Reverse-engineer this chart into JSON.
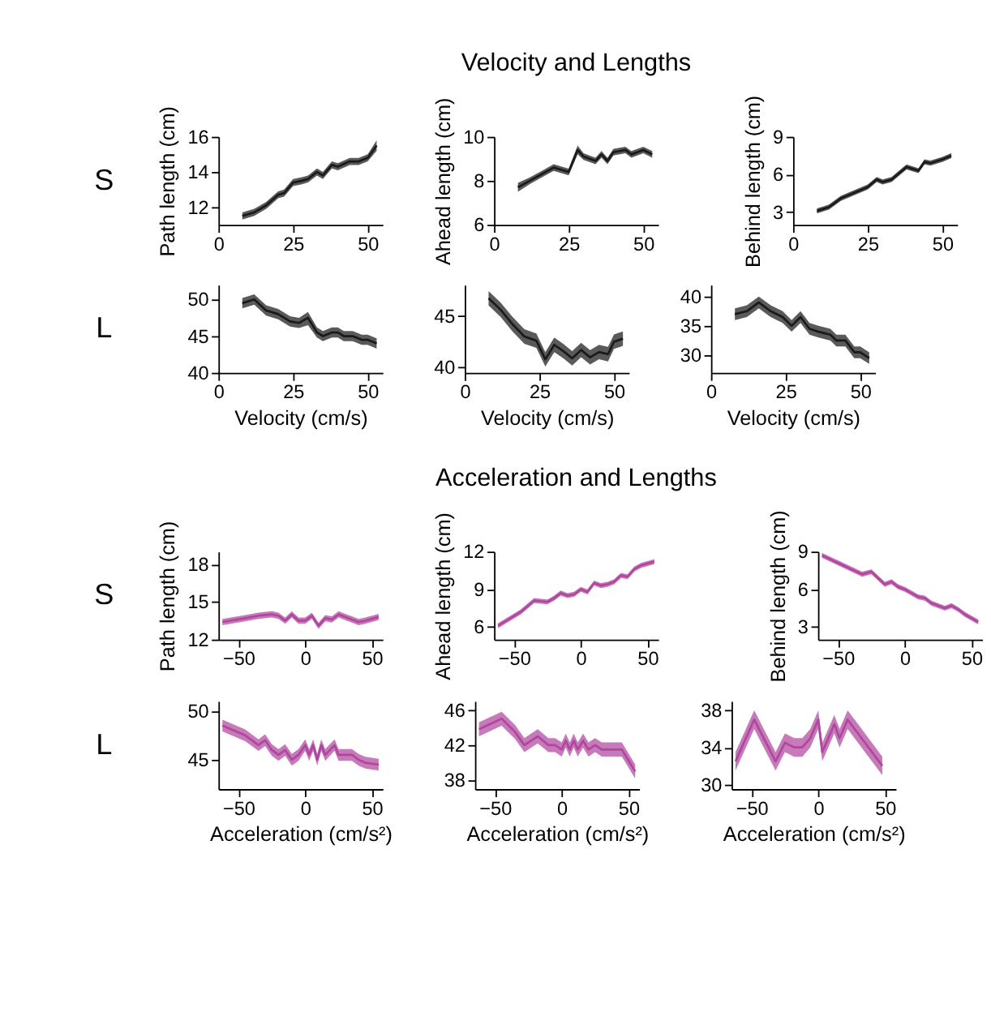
{
  "chart_data": [
    {
      "type": "line",
      "annotations": [
        "S"
      ],
      "ylabel": "Path length (cm)",
      "xlim": [
        0,
        55
      ],
      "xticks": [
        0,
        25,
        50
      ],
      "ylim": [
        11,
        16
      ],
      "yticks": [
        12,
        14,
        16
      ],
      "grid": false,
      "series": [
        {
          "color": "#1a1a1a",
          "x": [
            8,
            12,
            16,
            20,
            22,
            25,
            28,
            30,
            33,
            35,
            38,
            40,
            44,
            47,
            50,
            53
          ],
          "values": [
            11.5,
            11.7,
            12.1,
            12.7,
            12.8,
            13.4,
            13.5,
            13.6,
            14.0,
            13.8,
            14.4,
            14.3,
            14.6,
            14.6,
            14.8,
            15.5
          ],
          "lower": [
            11.3,
            11.5,
            11.9,
            12.5,
            12.6,
            13.2,
            13.3,
            13.4,
            13.8,
            13.6,
            14.2,
            14.1,
            14.4,
            14.4,
            14.6,
            15.2
          ],
          "upper": [
            11.7,
            11.9,
            12.3,
            12.9,
            13.0,
            13.6,
            13.7,
            13.8,
            14.2,
            14.0,
            14.6,
            14.5,
            14.8,
            14.8,
            15.0,
            15.8
          ]
        }
      ]
    },
    {
      "type": "line",
      "title": "Velocity and Lengths",
      "ylabel": "Ahead length (cm)",
      "xlim": [
        0,
        55
      ],
      "xticks": [
        0,
        25,
        50
      ],
      "ylim": [
        6,
        10
      ],
      "yticks": [
        6,
        8,
        10
      ],
      "grid": false,
      "series": [
        {
          "color": "#1a1a1a",
          "x": [
            8,
            12,
            16,
            20,
            25,
            28,
            30,
            34,
            36,
            38,
            40,
            44,
            46,
            50,
            53
          ],
          "values": [
            7.7,
            8.0,
            8.3,
            8.6,
            8.4,
            9.4,
            9.1,
            8.9,
            9.2,
            8.9,
            9.3,
            9.4,
            9.2,
            9.4,
            9.2
          ],
          "lower": [
            7.5,
            7.85,
            8.15,
            8.45,
            8.25,
            9.2,
            8.95,
            8.75,
            9.05,
            8.75,
            9.15,
            9.25,
            9.05,
            9.25,
            9.05
          ],
          "upper": [
            7.9,
            8.15,
            8.45,
            8.75,
            8.55,
            9.6,
            9.25,
            9.05,
            9.35,
            9.05,
            9.45,
            9.55,
            9.35,
            9.55,
            9.35
          ]
        }
      ]
    },
    {
      "type": "line",
      "ylabel": "Behind length (cm)",
      "xlim": [
        0,
        55
      ],
      "xticks": [
        0,
        25,
        50
      ],
      "ylim": [
        2,
        9
      ],
      "yticks": [
        3,
        6,
        9
      ],
      "grid": false,
      "series": [
        {
          "color": "#1a1a1a",
          "x": [
            8,
            12,
            16,
            20,
            25,
            28,
            30,
            33,
            35,
            38,
            42,
            44,
            46,
            50,
            53
          ],
          "values": [
            3.1,
            3.4,
            4.1,
            4.5,
            5.0,
            5.6,
            5.4,
            5.6,
            6.0,
            6.6,
            6.3,
            7.0,
            6.9,
            7.2,
            7.5
          ],
          "lower": [
            2.9,
            3.2,
            3.9,
            4.3,
            4.8,
            5.4,
            5.2,
            5.4,
            5.8,
            6.4,
            6.1,
            6.8,
            6.7,
            7.0,
            7.3
          ],
          "upper": [
            3.3,
            3.6,
            4.3,
            4.7,
            5.2,
            5.8,
            5.6,
            5.8,
            6.2,
            6.8,
            6.5,
            7.2,
            7.1,
            7.4,
            7.7
          ]
        }
      ]
    },
    {
      "type": "line",
      "annotations": [
        "L"
      ],
      "xlabel": "Velocity (cm/s)",
      "xlim": [
        0,
        55
      ],
      "xticks": [
        0,
        25,
        50
      ],
      "ylim": [
        40,
        52
      ],
      "yticks": [
        40,
        45,
        50
      ],
      "grid": false,
      "series": [
        {
          "color": "#1a1a1a",
          "x": [
            8,
            12,
            16,
            20,
            24,
            27,
            30,
            33,
            35,
            38,
            40,
            42,
            45,
            48,
            50,
            53
          ],
          "values": [
            49.5,
            50.0,
            48.5,
            48.0,
            47.0,
            46.8,
            47.5,
            45.5,
            45.0,
            45.5,
            45.5,
            45.0,
            45.0,
            44.5,
            44.5,
            44.0
          ],
          "lower": [
            48.8,
            49.3,
            47.8,
            47.3,
            46.3,
            46.1,
            46.5,
            44.8,
            44.3,
            44.8,
            44.8,
            44.3,
            44.3,
            43.8,
            43.8,
            43.3
          ],
          "upper": [
            50.2,
            50.7,
            49.2,
            48.7,
            47.7,
            47.5,
            48.3,
            46.2,
            45.7,
            46.2,
            46.2,
            45.7,
            45.7,
            45.2,
            45.2,
            44.7
          ]
        }
      ]
    },
    {
      "type": "line",
      "xlabel": "Velocity (cm/s)",
      "xlim": [
        0,
        55
      ],
      "xticks": [
        0,
        25,
        50
      ],
      "ylim": [
        39.5,
        48
      ],
      "yticks": [
        40,
        45
      ],
      "grid": false,
      "series": [
        {
          "color": "#1a1a1a",
          "x": [
            8,
            12,
            16,
            20,
            24,
            27,
            30,
            33,
            36,
            39,
            42,
            45,
            48,
            50,
            53
          ],
          "values": [
            46.7,
            45.6,
            44.2,
            43.0,
            42.6,
            40.8,
            42.2,
            41.6,
            40.9,
            41.7,
            41.0,
            41.5,
            41.3,
            42.5,
            42.8
          ],
          "lower": [
            46.0,
            44.9,
            43.5,
            42.3,
            41.9,
            40.1,
            41.5,
            40.9,
            40.2,
            41.0,
            40.3,
            40.8,
            40.6,
            41.8,
            42.1
          ],
          "upper": [
            47.4,
            46.3,
            44.9,
            43.7,
            43.3,
            41.5,
            42.9,
            42.3,
            41.6,
            42.4,
            41.7,
            42.2,
            42.0,
            43.2,
            43.5
          ]
        }
      ]
    },
    {
      "type": "line",
      "xlabel": "Velocity (cm/s)",
      "xlim": [
        0,
        55
      ],
      "xticks": [
        0,
        25,
        50
      ],
      "ylim": [
        27,
        42
      ],
      "yticks": [
        30,
        35,
        40
      ],
      "grid": false,
      "series": [
        {
          "color": "#1a1a1a",
          "x": [
            8,
            12,
            16,
            20,
            24,
            27,
            30,
            33,
            36,
            40,
            42,
            45,
            48,
            50,
            53
          ],
          "values": [
            37.0,
            37.5,
            39.0,
            37.5,
            36.5,
            35.0,
            36.5,
            34.5,
            34.0,
            33.5,
            32.5,
            32.5,
            30.5,
            30.5,
            29.5
          ],
          "lower": [
            36.0,
            36.5,
            38.0,
            36.5,
            35.5,
            34.0,
            35.5,
            33.5,
            33.0,
            32.5,
            31.5,
            31.5,
            29.5,
            29.5,
            28.5
          ],
          "upper": [
            38.0,
            38.5,
            40.0,
            38.5,
            37.5,
            36.0,
            37.5,
            35.5,
            35.0,
            34.5,
            33.5,
            33.5,
            31.5,
            31.5,
            30.5
          ]
        }
      ]
    },
    {
      "type": "line",
      "annotations": [
        "S"
      ],
      "ylabel": "Path length (cm)",
      "xlim": [
        -65,
        58
      ],
      "xticks": [
        -50,
        0,
        50
      ],
      "ylim": [
        12,
        19
      ],
      "yticks": [
        12,
        15,
        18
      ],
      "grid": false,
      "series": [
        {
          "color": "#b0479e",
          "x": [
            -62,
            -45,
            -35,
            -25,
            -20,
            -15,
            -10,
            -5,
            0,
            5,
            10,
            15,
            20,
            25,
            30,
            35,
            40,
            45,
            55
          ],
          "values": [
            13.4,
            13.7,
            13.9,
            14.0,
            13.9,
            13.5,
            14.0,
            13.5,
            13.5,
            13.9,
            13.1,
            13.7,
            13.6,
            14.0,
            13.8,
            13.6,
            13.4,
            13.5,
            13.8
          ],
          "lower": [
            13.15,
            13.45,
            13.65,
            13.75,
            13.65,
            13.25,
            13.75,
            13.25,
            13.25,
            13.65,
            12.85,
            13.45,
            13.35,
            13.75,
            13.55,
            13.35,
            13.15,
            13.25,
            13.55
          ],
          "upper": [
            13.65,
            13.95,
            14.15,
            14.25,
            14.15,
            13.75,
            14.25,
            13.75,
            13.75,
            14.15,
            13.35,
            13.95,
            13.85,
            14.25,
            14.05,
            13.85,
            13.65,
            13.75,
            14.05
          ]
        }
      ]
    },
    {
      "type": "line",
      "title": "Acceleration and Lengths",
      "ylabel": "Ahead length (cm)",
      "xlim": [
        -65,
        58
      ],
      "xticks": [
        -50,
        0,
        50
      ],
      "ylim": [
        5,
        12
      ],
      "yticks": [
        6,
        9,
        12
      ],
      "grid": false,
      "series": [
        {
          "color": "#b0479e",
          "x": [
            -62,
            -45,
            -35,
            -25,
            -20,
            -15,
            -10,
            -5,
            0,
            5,
            10,
            15,
            20,
            25,
            30,
            35,
            40,
            45,
            55
          ],
          "values": [
            6.1,
            7.2,
            8.1,
            8.0,
            8.3,
            8.7,
            8.5,
            8.6,
            9.0,
            8.8,
            9.5,
            9.3,
            9.4,
            9.6,
            10.1,
            10.0,
            10.6,
            10.9,
            11.2
          ],
          "lower": [
            5.9,
            7.0,
            7.9,
            7.8,
            8.1,
            8.5,
            8.3,
            8.4,
            8.8,
            8.6,
            9.3,
            9.1,
            9.2,
            9.4,
            9.9,
            9.8,
            10.4,
            10.7,
            11.0
          ],
          "upper": [
            6.3,
            7.4,
            8.3,
            8.2,
            8.5,
            8.9,
            8.7,
            8.8,
            9.2,
            9.0,
            9.7,
            9.5,
            9.6,
            9.8,
            10.3,
            10.2,
            10.8,
            11.1,
            11.4
          ]
        }
      ]
    },
    {
      "type": "line",
      "ylabel": "Behind length (cm)",
      "xlim": [
        -65,
        58
      ],
      "xticks": [
        -50,
        0,
        50
      ],
      "ylim": [
        2,
        9
      ],
      "yticks": [
        3,
        6,
        9
      ],
      "grid": false,
      "series": [
        {
          "color": "#b0479e",
          "x": [
            -62,
            -50,
            -40,
            -32,
            -25,
            -20,
            -15,
            -10,
            -5,
            0,
            5,
            10,
            15,
            20,
            30,
            35,
            40,
            45,
            55
          ],
          "values": [
            8.7,
            8.1,
            7.6,
            7.2,
            7.4,
            6.9,
            6.4,
            6.6,
            6.2,
            6.0,
            5.7,
            5.4,
            5.3,
            4.9,
            4.5,
            4.7,
            4.4,
            4.0,
            3.4
          ],
          "lower": [
            8.5,
            7.9,
            7.4,
            7.0,
            7.2,
            6.7,
            6.2,
            6.4,
            6.0,
            5.8,
            5.5,
            5.2,
            5.1,
            4.7,
            4.3,
            4.5,
            4.2,
            3.8,
            3.2
          ],
          "upper": [
            8.9,
            8.3,
            7.8,
            7.4,
            7.6,
            7.1,
            6.6,
            6.8,
            6.4,
            6.2,
            5.9,
            5.6,
            5.5,
            5.1,
            4.7,
            4.9,
            4.6,
            4.2,
            3.6
          ]
        }
      ]
    },
    {
      "type": "line",
      "annotations": [
        "L"
      ],
      "xlabel": "Acceleration (cm/s²)",
      "xlim": [
        -65,
        58
      ],
      "xticks": [
        -50,
        0,
        50
      ],
      "ylim": [
        42,
        51
      ],
      "yticks": [
        45,
        50
      ],
      "grid": false,
      "series": [
        {
          "color": "#b0479e",
          "x": [
            -62,
            -45,
            -35,
            -30,
            -25,
            -20,
            -15,
            -10,
            -5,
            0,
            3,
            6,
            9,
            12,
            15,
            22,
            25,
            30,
            35,
            40,
            45,
            55
          ],
          "values": [
            48.5,
            47.5,
            46.5,
            47.0,
            46.0,
            45.5,
            46.0,
            45.0,
            45.5,
            46.5,
            45.5,
            46.5,
            45.0,
            46.5,
            45.5,
            46.5,
            45.5,
            45.5,
            45.5,
            45.0,
            44.7,
            44.5
          ],
          "lower": [
            47.9,
            46.9,
            45.9,
            46.4,
            45.4,
            44.9,
            45.4,
            44.4,
            44.9,
            45.9,
            44.9,
            45.9,
            44.4,
            45.9,
            44.9,
            45.9,
            44.9,
            44.9,
            44.9,
            44.4,
            44.1,
            43.9
          ],
          "upper": [
            49.1,
            48.1,
            47.1,
            47.6,
            46.6,
            46.1,
            46.6,
            45.6,
            46.1,
            47.1,
            46.1,
            47.1,
            45.6,
            47.1,
            46.1,
            47.1,
            46.1,
            46.1,
            46.1,
            45.6,
            45.3,
            45.1
          ]
        }
      ]
    },
    {
      "type": "line",
      "xlabel": "Acceleration (cm/s²)",
      "xlim": [
        -65,
        58
      ],
      "xticks": [
        -50,
        0,
        50
      ],
      "ylim": [
        37,
        47
      ],
      "yticks": [
        38,
        42,
        46
      ],
      "grid": false,
      "series": [
        {
          "color": "#b0479e",
          "x": [
            -62,
            -45,
            -35,
            -28,
            -18,
            -10,
            -5,
            0,
            3,
            6,
            9,
            12,
            16,
            20,
            25,
            30,
            35,
            45,
            55
          ],
          "values": [
            43.8,
            45.0,
            43.5,
            42.0,
            43.0,
            42.0,
            42.0,
            41.5,
            42.5,
            41.5,
            42.5,
            41.5,
            42.5,
            41.5,
            42.0,
            41.5,
            41.5,
            41.5,
            39.0
          ],
          "lower": [
            43.0,
            44.2,
            42.7,
            41.2,
            42.2,
            41.2,
            41.2,
            40.7,
            41.7,
            40.7,
            41.7,
            40.7,
            41.7,
            40.7,
            41.2,
            40.7,
            40.7,
            40.7,
            38.2
          ],
          "upper": [
            44.6,
            45.8,
            44.3,
            42.8,
            43.8,
            42.8,
            42.8,
            42.3,
            43.3,
            42.3,
            43.3,
            42.3,
            43.3,
            42.3,
            42.8,
            42.3,
            42.3,
            42.3,
            39.8
          ]
        }
      ]
    },
    {
      "type": "line",
      "xlabel": "Acceleration (cm/s²)",
      "xlim": [
        -65,
        58
      ],
      "xticks": [
        -50,
        0,
        50
      ],
      "ylim": [
        29.5,
        39
      ],
      "yticks": [
        30,
        34,
        38
      ],
      "grid": false,
      "series": [
        {
          "color": "#b0479e",
          "x": [
            -62,
            -48,
            -32,
            -25,
            -18,
            -12,
            -6,
            0,
            3,
            6,
            12,
            16,
            22,
            35,
            48
          ],
          "values": [
            32.5,
            37.0,
            32.5,
            34.5,
            34.0,
            34.0,
            35.0,
            37.0,
            33.5,
            34.5,
            36.5,
            35.0,
            37.0,
            34.5,
            32.0
          ],
          "lower": [
            31.5,
            36.0,
            31.5,
            33.5,
            33.0,
            33.0,
            34.0,
            36.0,
            32.5,
            33.5,
            35.5,
            34.0,
            36.0,
            33.5,
            31.0
          ],
          "upper": [
            33.5,
            38.0,
            33.5,
            35.5,
            35.0,
            35.0,
            36.0,
            38.0,
            34.5,
            35.5,
            37.5,
            36.0,
            38.0,
            35.5,
            33.0
          ]
        }
      ]
    }
  ]
}
